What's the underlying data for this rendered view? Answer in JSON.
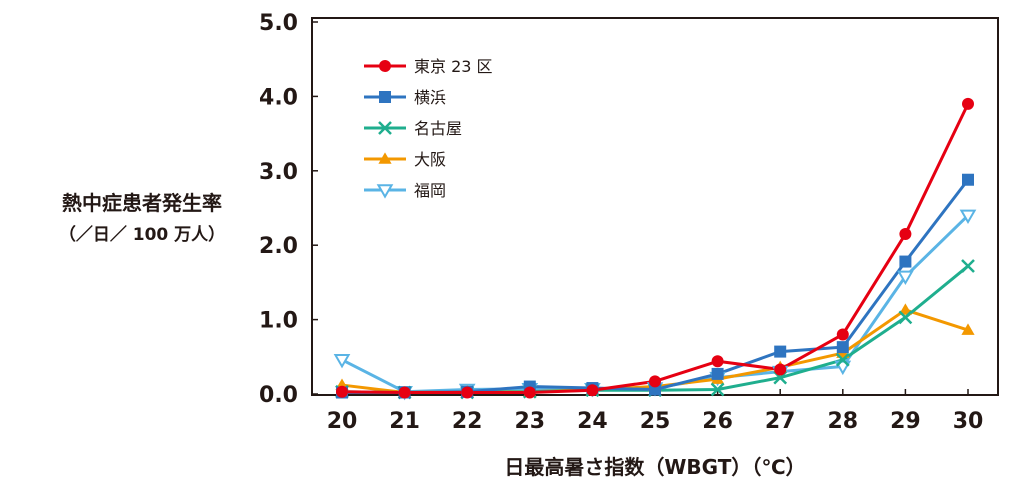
{
  "chart_data": {
    "type": "line",
    "ylabel": "熱中症患者発生率",
    "ylabel_unit": "（／日／ 100 万人）",
    "xlabel": "日最高暑さ指数（WBGT）（℃）",
    "x": [
      20,
      21,
      22,
      23,
      24,
      25,
      26,
      27,
      28,
      29,
      30
    ],
    "x_ticks": [
      "20",
      "21",
      "22",
      "23",
      "24",
      "25",
      "26",
      "27",
      "28",
      "29",
      "30"
    ],
    "y_ticks": [
      "0.0",
      "1.0",
      "2.0",
      "3.0",
      "4.0",
      "5.0"
    ],
    "ylim": [
      0,
      5
    ],
    "xlim": [
      20,
      30
    ],
    "grid": false,
    "legend_position": "top-left",
    "series": [
      {
        "name": "東京 23 区",
        "color": "#e60012",
        "marker": "circle",
        "values": [
          0.03,
          0.02,
          0.02,
          0.02,
          0.05,
          0.17,
          0.44,
          0.33,
          0.8,
          2.15,
          3.9
        ]
      },
      {
        "name": "横浜",
        "color": "#2e74c0",
        "marker": "square",
        "values": [
          0.02,
          0.02,
          0.03,
          0.1,
          0.08,
          0.06,
          0.27,
          0.57,
          0.63,
          1.78,
          2.88
        ]
      },
      {
        "name": "名古屋",
        "color": "#1fae8e",
        "marker": "cross",
        "values": [
          0.03,
          0.02,
          0.02,
          0.03,
          0.05,
          0.05,
          0.06,
          0.22,
          0.46,
          1.03,
          1.72
        ]
      },
      {
        "name": "大阪",
        "color": "#f39800",
        "marker": "triangle-up",
        "values": [
          0.12,
          0.02,
          0.03,
          0.03,
          0.06,
          0.1,
          0.2,
          0.36,
          0.55,
          1.13,
          0.86
        ]
      },
      {
        "name": "福岡",
        "color": "#5ab4e5",
        "marker": "triangle-down",
        "values": [
          0.46,
          0.03,
          0.06,
          0.07,
          0.07,
          0.08,
          0.22,
          0.3,
          0.37,
          1.58,
          2.4
        ]
      }
    ]
  }
}
